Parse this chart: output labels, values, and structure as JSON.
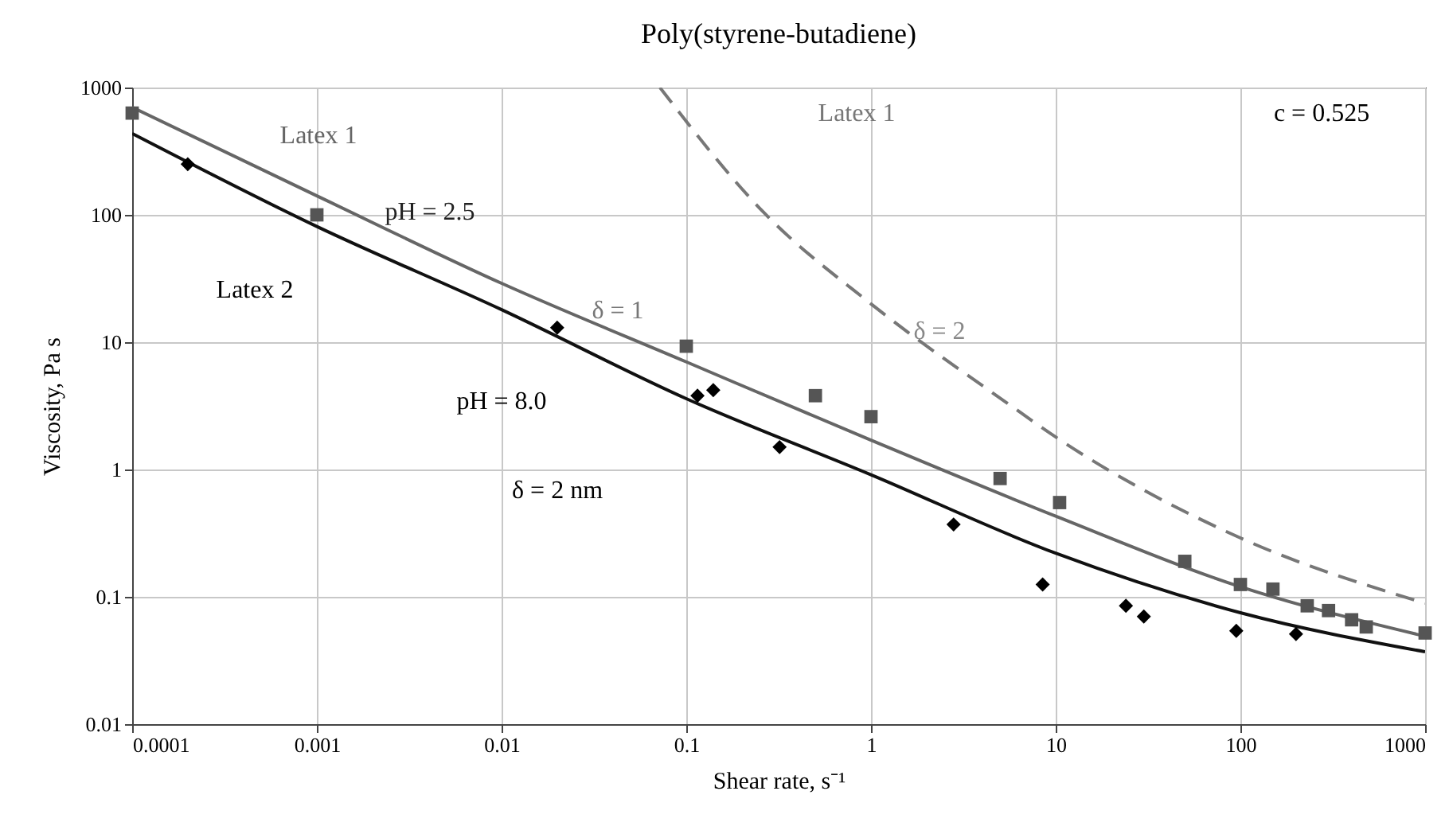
{
  "chart_data": {
    "type": "scatter",
    "title": "Poly(styrene-butadiene)",
    "xlabel": "Shear rate, s⁻¹",
    "ylabel": "Viscosity, Pa s",
    "log": "xy",
    "grid": true,
    "xlim": [
      0.0001,
      1000
    ],
    "xticks": [
      0.0001,
      0.001,
      0.01,
      0.1,
      1,
      10,
      100,
      1000
    ],
    "ylim": [
      0.01,
      1000
    ],
    "yticks": [
      0.01,
      0.1,
      1,
      10,
      100,
      1000
    ],
    "series": [
      {
        "type": "line",
        "color": "#666666",
        "marker": "none",
        "line_style": "solid",
        "x": [
          0.0001,
          0.001,
          0.01,
          0.1,
          1,
          10,
          100,
          1000
        ],
        "values": [
          700,
          141,
          29,
          7,
          1.7,
          0.43,
          0.12,
          0.049
        ]
      },
      {
        "type": "line",
        "color": "#111111",
        "marker": "none",
        "line_style": "solid",
        "x": [
          0.0001,
          0.001,
          0.01,
          0.1,
          1,
          10,
          100,
          1000
        ],
        "values": [
          435,
          81,
          18,
          3.6,
          0.91,
          0.22,
          0.075,
          0.037
        ]
      },
      {
        "type": "line",
        "color": "#777777",
        "marker": "none",
        "line_style": "dashed",
        "x": [
          0.072,
          0.26,
          1,
          5.5,
          10,
          100,
          1000
        ],
        "values": [
          1000,
          106,
          20,
          3.3,
          1.8,
          0.29,
          0.089
        ]
      },
      {
        "color": "#555555",
        "marker": "square",
        "x": [
          0.0001,
          0.001,
          0.1,
          0.5,
          1,
          5,
          10.5,
          50,
          100,
          150,
          230,
          300,
          400,
          480,
          1000
        ],
        "values": [
          630,
          100,
          9.3,
          3.8,
          2.6,
          0.85,
          0.55,
          0.19,
          0.125,
          0.115,
          0.085,
          0.078,
          0.066,
          0.058,
          0.052
        ]
      },
      {
        "color": "#000000",
        "marker": "diamond",
        "x": [
          0.0002,
          0.02,
          0.115,
          0.14,
          0.32,
          2.8,
          8.5,
          24,
          30,
          95,
          200
        ],
        "values": [
          250,
          13,
          3.8,
          4.2,
          1.5,
          0.37,
          0.125,
          0.085,
          0.07,
          0.054,
          0.051
        ]
      }
    ],
    "annotations": [
      "Latex 1",
      "pH = 2.5",
      "Latex 2",
      "δ = 1",
      "pH = 8.0",
      "δ = 2 nm",
      "Latex 1",
      "δ = 2",
      "c = 0.525"
    ]
  }
}
